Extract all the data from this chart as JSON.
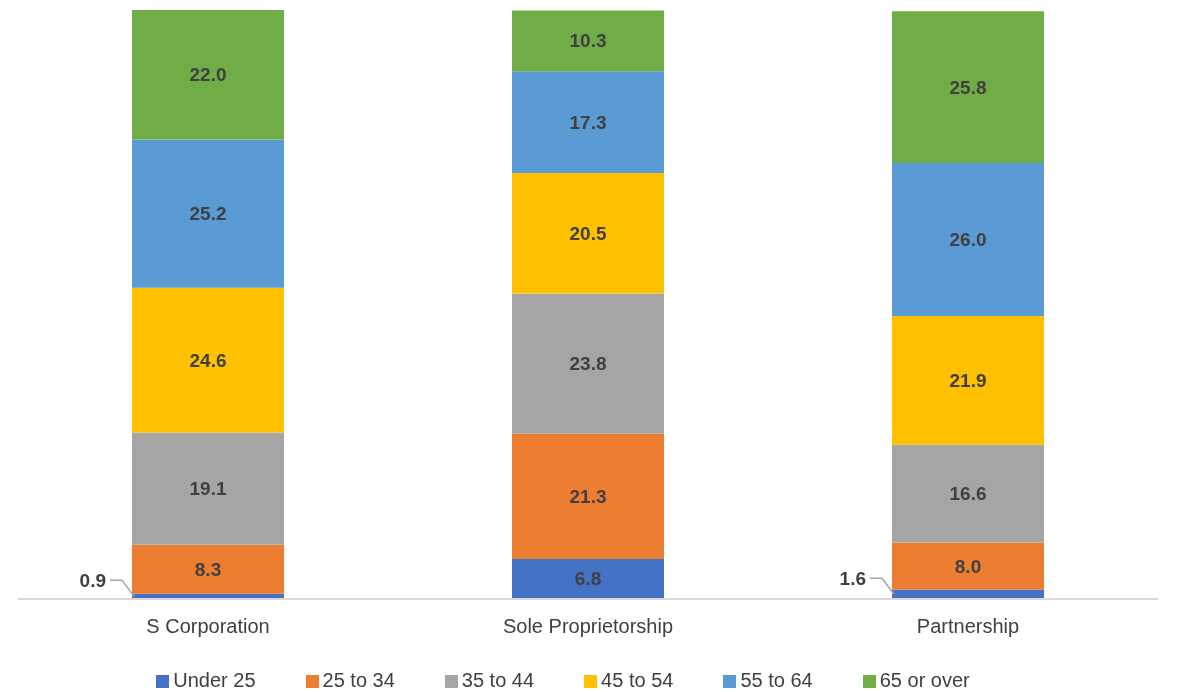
{
  "chart_data": {
    "type": "bar",
    "stacked": true,
    "categories": [
      "S Corporation",
      "Sole Proprietorship",
      "Partnership"
    ],
    "series": [
      {
        "name": "Under 25",
        "color": "#4472c4",
        "values": [
          0.9,
          6.8,
          1.6
        ],
        "value_labels": [
          "0.9",
          "6.8",
          "1.6"
        ]
      },
      {
        "name": "25 to 34",
        "color": "#ed7d31",
        "values": [
          8.3,
          21.3,
          8.0
        ],
        "value_labels": [
          "8.3",
          "21.3",
          "8.0"
        ]
      },
      {
        "name": "35 to 44",
        "color": "#a5a5a5",
        "values": [
          19.1,
          23.8,
          16.6
        ],
        "value_labels": [
          "19.1",
          "23.8",
          "16.6"
        ]
      },
      {
        "name": "45 to 54",
        "color": "#ffc000",
        "values": [
          24.6,
          20.5,
          21.9
        ],
        "value_labels": [
          "24.6",
          "20.5",
          "21.9"
        ]
      },
      {
        "name": "55 to 64",
        "color": "#5b9bd5",
        "values": [
          25.2,
          17.3,
          26.0
        ],
        "value_labels": [
          "25.2",
          "17.3",
          "26.0"
        ]
      },
      {
        "name": "65 or over",
        "color": "#70ad47",
        "values": [
          22.0,
          10.3,
          25.8
        ],
        "value_labels": [
          "22.0",
          "10.3",
          "25.8"
        ]
      }
    ],
    "grid": false,
    "legend": "bottom"
  }
}
